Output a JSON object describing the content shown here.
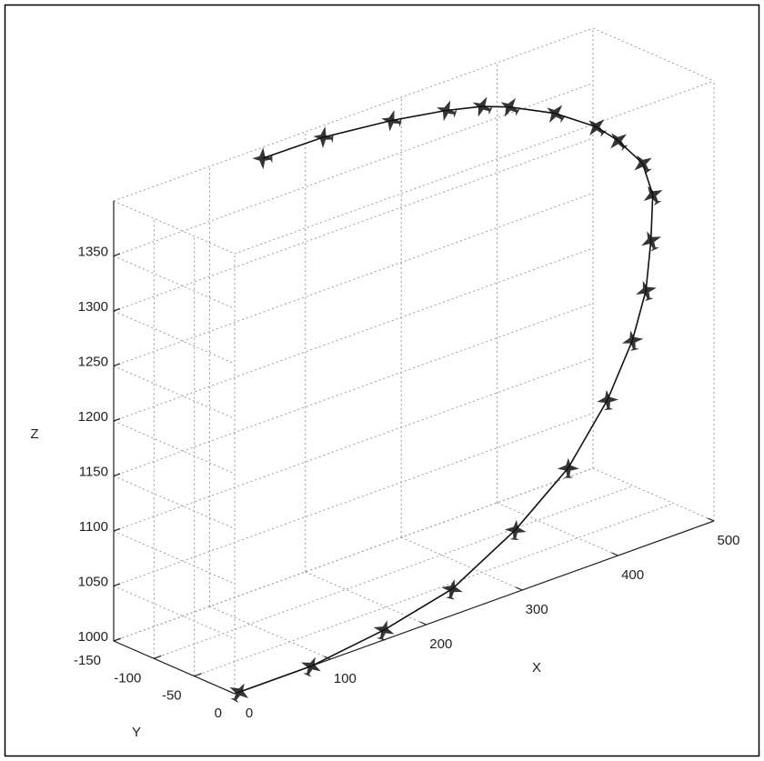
{
  "chart_data": {
    "type": "line3d",
    "xlabel": "X",
    "ylabel": "Y",
    "zlabel": "Z",
    "color": "#111111",
    "grid": true,
    "xlim": [
      0,
      500
    ],
    "ylim": [
      -150,
      0
    ],
    "zlim": [
      1000,
      1400
    ],
    "xticks": [
      0,
      100,
      200,
      300,
      400,
      500
    ],
    "yticks": [
      -150,
      -100,
      -50,
      0
    ],
    "zticks": [
      1000,
      1050,
      1100,
      1150,
      1200,
      1250,
      1300,
      1350
    ],
    "x": [
      5,
      80,
      156,
      227,
      293,
      348,
      389,
      415,
      429,
      441,
      453,
      455,
      442,
      436,
      410,
      375,
      357,
      330,
      281,
      216,
      155
    ],
    "y": [
      0,
      0,
      0,
      0,
      0,
      0,
      0,
      0,
      0,
      -8,
      -20,
      -35,
      -50,
      -70,
      -90,
      -105,
      -118,
      -130,
      -140,
      -147,
      -150
    ],
    "z": [
      1000,
      1000,
      1009,
      1024,
      1057,
      1096,
      1145,
      1191,
      1232,
      1271,
      1305,
      1328,
      1348,
      1356,
      1370,
      1382,
      1384,
      1385,
      1388,
      1391,
      1390
    ]
  }
}
